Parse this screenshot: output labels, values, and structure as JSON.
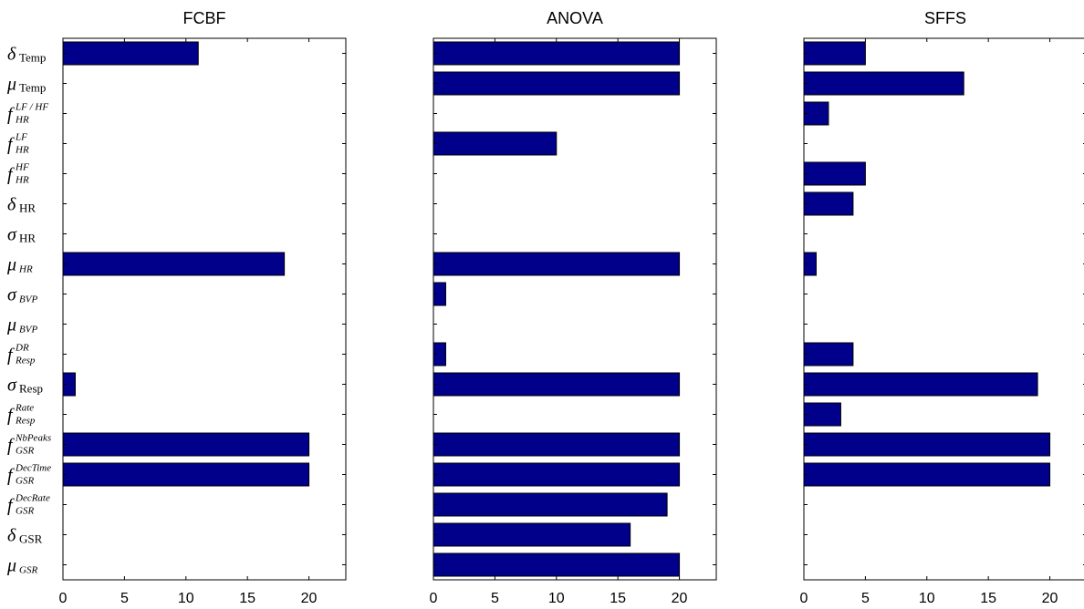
{
  "chart_data": [
    {
      "type": "bar",
      "orientation": "horizontal",
      "title": "FCBF",
      "xlim": [
        0,
        23
      ],
      "xticks": [
        0,
        5,
        10,
        15,
        20
      ],
      "bar_color": "#00008B",
      "grid": false,
      "values": [
        11,
        0,
        0,
        0,
        0,
        0,
        0,
        18,
        0,
        0,
        0,
        1,
        0,
        20,
        20,
        0,
        0,
        0
      ]
    },
    {
      "type": "bar",
      "orientation": "horizontal",
      "title": "ANOVA",
      "xlim": [
        0,
        23
      ],
      "xticks": [
        0,
        5,
        10,
        15,
        20
      ],
      "bar_color": "#00008B",
      "grid": false,
      "values": [
        20,
        20,
        0,
        10,
        0,
        0,
        0,
        20,
        1,
        0,
        1,
        20,
        0,
        20,
        20,
        19,
        16,
        20
      ]
    },
    {
      "type": "bar",
      "orientation": "horizontal",
      "title": "SFFS",
      "xlim": [
        0,
        23
      ],
      "xticks": [
        0,
        5,
        10,
        15,
        20
      ],
      "bar_color": "#00008B",
      "grid": false,
      "values": [
        5,
        13,
        2,
        0,
        5,
        4,
        0,
        1,
        0,
        0,
        4,
        19,
        3,
        20,
        20,
        0,
        0,
        0
      ]
    }
  ],
  "categories": [
    {
      "main": "δ",
      "sub": "Temp",
      "sup": "",
      "sub_italic": false
    },
    {
      "main": "μ",
      "sub": "Temp",
      "sup": "",
      "sub_italic": false
    },
    {
      "main": "f",
      "sub": "HR",
      "sup": "LF / HF",
      "sub_italic": true
    },
    {
      "main": "f",
      "sub": "HR",
      "sup": "LF",
      "sub_italic": true
    },
    {
      "main": "f",
      "sub": "HR",
      "sup": "HF",
      "sub_italic": true
    },
    {
      "main": "δ",
      "sub": "HR",
      "sup": "",
      "sub_italic": false
    },
    {
      "main": "σ",
      "sub": "HR",
      "sup": "",
      "sub_italic": false
    },
    {
      "main": "μ",
      "sub": "HR",
      "sup": "",
      "sub_italic": true
    },
    {
      "main": "σ",
      "sub": "BVP",
      "sup": "",
      "sub_italic": true
    },
    {
      "main": "μ",
      "sub": "BVP",
      "sup": "",
      "sub_italic": true
    },
    {
      "main": "f",
      "sub": "Resp",
      "sup": "DR",
      "sub_italic": true
    },
    {
      "main": "σ",
      "sub": "Resp",
      "sup": "",
      "sub_italic": false
    },
    {
      "main": "f",
      "sub": "Resp",
      "sup": "Rate",
      "sub_italic": true
    },
    {
      "main": "f",
      "sub": "GSR",
      "sup": "NbPeaks",
      "sub_italic": true
    },
    {
      "main": "f",
      "sub": "GSR",
      "sup": "DecTime",
      "sub_italic": true
    },
    {
      "main": "f",
      "sub": "GSR",
      "sup": "DecRate",
      "sub_italic": true
    },
    {
      "main": "δ",
      "sub": "GSR",
      "sup": "",
      "sub_italic": false
    },
    {
      "main": "μ",
      "sub": "GSR",
      "sup": "",
      "sub_italic": true
    }
  ]
}
